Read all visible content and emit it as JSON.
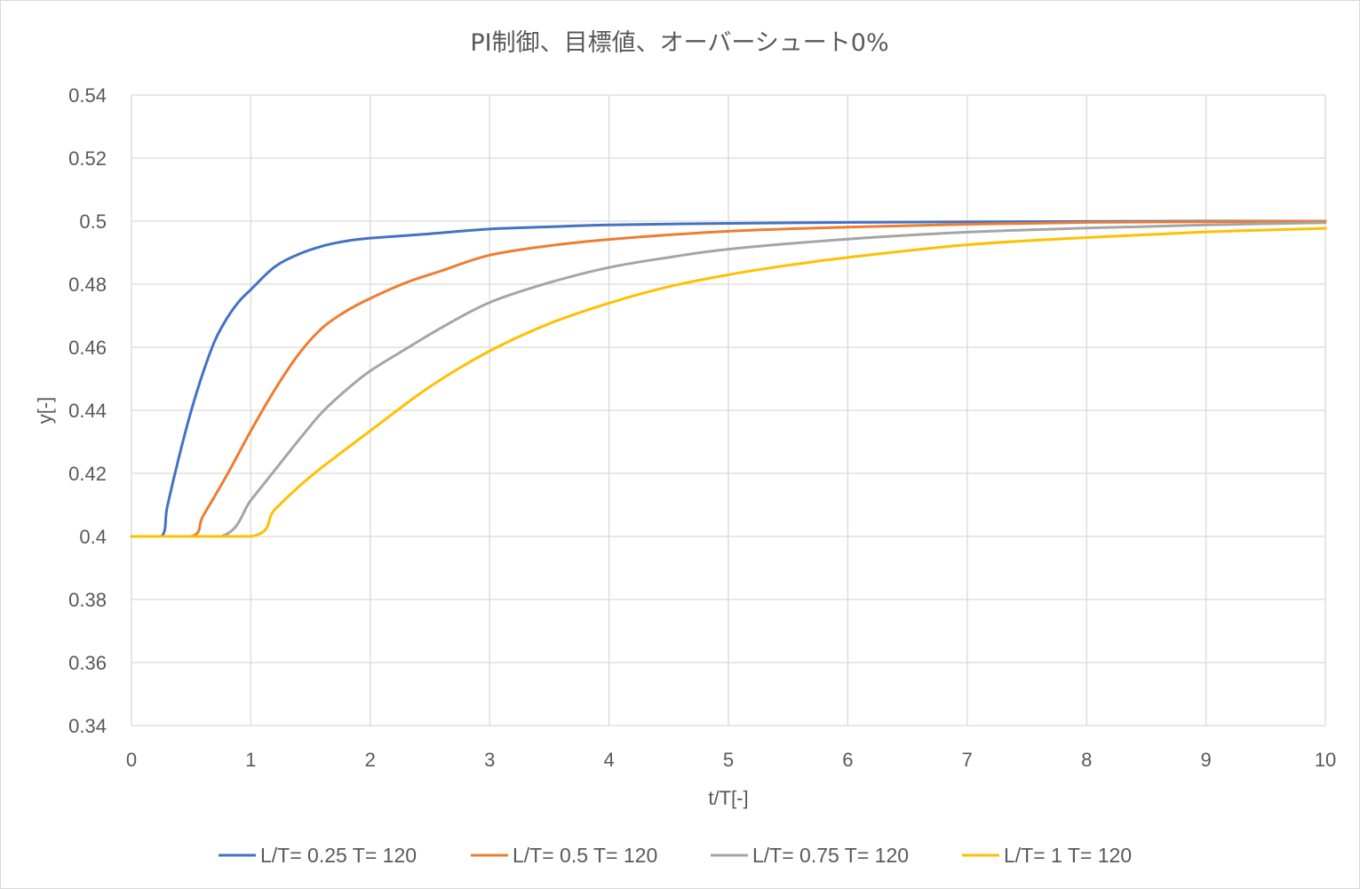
{
  "chart_data": {
    "type": "line",
    "title": "PI制御、目標値、オーバーシュート0%",
    "xlabel": "t/T[-]",
    "ylabel": "y[-]",
    "xlim": [
      0,
      10
    ],
    "ylim": [
      0.34,
      0.54
    ],
    "x_ticks": [
      "0",
      "1",
      "2",
      "3",
      "4",
      "5",
      "6",
      "7",
      "8",
      "9",
      "10"
    ],
    "y_ticks": [
      "0.34",
      "0.36",
      "0.38",
      "0.4",
      "0.42",
      "0.44",
      "0.46",
      "0.48",
      "0.5",
      "0.52",
      "0.54"
    ],
    "grid": true,
    "legend_position": "bottom",
    "series": [
      {
        "name": "L/T= 0.25 T= 120",
        "color": "#4472c4",
        "x": [
          0,
          0.25,
          0.3,
          0.4,
          0.5,
          0.6,
          0.7,
          0.8,
          0.9,
          1.0,
          1.2,
          1.4,
          1.6,
          1.8,
          2.0,
          2.5,
          3.0,
          3.5,
          4.0,
          5.0,
          6.0,
          7.0,
          8.0,
          9.0,
          10.0
        ],
        "y": [
          0.4,
          0.4,
          0.4095,
          0.4255,
          0.4398,
          0.452,
          0.4622,
          0.4692,
          0.4745,
          0.4783,
          0.4855,
          0.4895,
          0.4921,
          0.4937,
          0.4946,
          0.496,
          0.4975,
          0.4982,
          0.4988,
          0.4993,
          0.4996,
          0.4998,
          0.4999,
          0.5,
          0.5
        ]
      },
      {
        "name": "L/T= 0.5 T= 120",
        "color": "#ed7d31",
        "x": [
          0,
          0.5,
          0.6,
          0.8,
          1.0,
          1.2,
          1.4,
          1.6,
          1.8,
          2.0,
          2.3,
          2.6,
          3.0,
          3.5,
          4.0,
          5.0,
          6.0,
          7.0,
          8.0,
          9.0,
          10.0
        ],
        "y": [
          0.4,
          0.4,
          0.4065,
          0.4195,
          0.4335,
          0.4465,
          0.4578,
          0.4662,
          0.4715,
          0.4755,
          0.4805,
          0.4843,
          0.4892,
          0.4922,
          0.4942,
          0.4968,
          0.4981,
          0.499,
          0.4996,
          0.4998,
          0.5
        ]
      },
      {
        "name": "L/T= 0.75 T= 120",
        "color": "#a5a5a5",
        "x": [
          0,
          0.75,
          1.0,
          1.2,
          1.4,
          1.6,
          1.8,
          2.0,
          2.3,
          2.6,
          3.0,
          3.5,
          4.0,
          4.5,
          5.0,
          6.0,
          7.0,
          8.0,
          9.0,
          10.0
        ],
        "y": [
          0.4,
          0.4,
          0.4115,
          0.421,
          0.4305,
          0.4395,
          0.4465,
          0.4525,
          0.4595,
          0.4663,
          0.4742,
          0.4805,
          0.4853,
          0.4885,
          0.4911,
          0.4943,
          0.4965,
          0.4978,
          0.4988,
          0.4995
        ]
      },
      {
        "name": "L/T= 1 T= 120",
        "color": "#ffc000",
        "x": [
          0,
          1.0,
          1.2,
          1.5,
          2.0,
          2.5,
          3.0,
          3.5,
          4.0,
          4.5,
          5.0,
          5.5,
          6.0,
          7.0,
          8.0,
          9.0,
          10.0
        ],
        "y": [
          0.4,
          0.4,
          0.4085,
          0.419,
          0.4335,
          0.4475,
          0.4588,
          0.4675,
          0.474,
          0.4792,
          0.483,
          0.486,
          0.4885,
          0.4925,
          0.4948,
          0.4966,
          0.4977
        ]
      }
    ]
  }
}
